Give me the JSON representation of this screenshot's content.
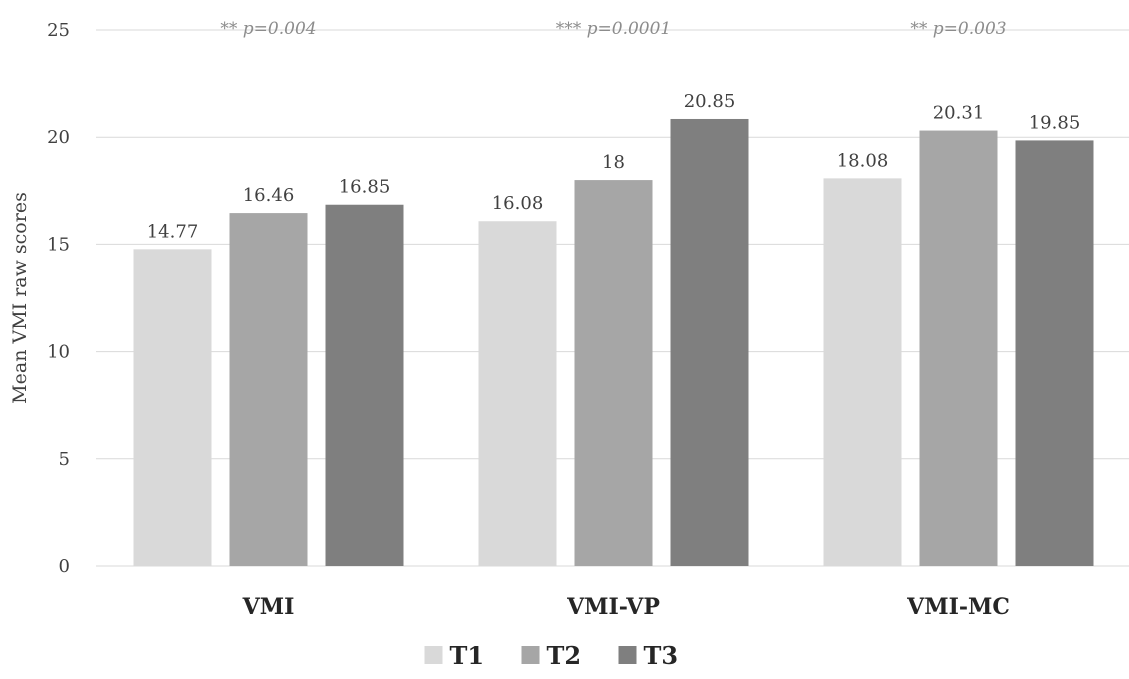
{
  "chart_data": {
    "type": "bar",
    "title": "",
    "xlabel": "",
    "ylabel": "Mean VMI raw scores",
    "ylim": [
      0,
      25
    ],
    "yticks": [
      0,
      5,
      10,
      15,
      20,
      25
    ],
    "grid": true,
    "legend_position": "bottom",
    "categories": [
      "VMI",
      "VMI-VP",
      "VMI-MC"
    ],
    "series": [
      {
        "name": "T1",
        "color": "#d9d9d9",
        "values": [
          14.77,
          16.08,
          18.08
        ]
      },
      {
        "name": "T2",
        "color": "#a6a6a6",
        "values": [
          16.46,
          18,
          20.31
        ]
      },
      {
        "name": "T3",
        "color": "#7f7f7f",
        "values": [
          16.85,
          20.85,
          19.85
        ]
      }
    ],
    "annotations": [
      "** p=0.004",
      "*** p=0.0001",
      "** p=0.003"
    ]
  }
}
